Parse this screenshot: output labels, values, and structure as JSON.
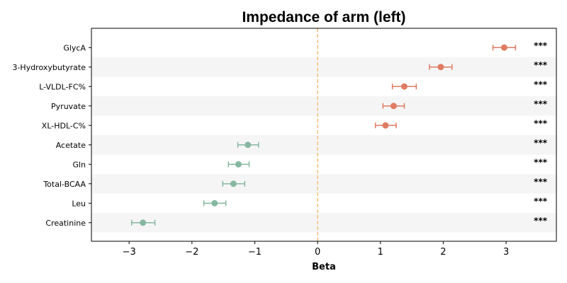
{
  "chart_data": {
    "type": "scatter",
    "title": "Impedance of arm (left)",
    "xlabel": "Beta",
    "ylabel": "",
    "xlim": [
      -3.6,
      3.8
    ],
    "xticks": [
      -3,
      -2,
      -1,
      0,
      1,
      2,
      3
    ],
    "xtick_labels": [
      "−3",
      "−2",
      "−1",
      "0",
      "1",
      "2",
      "3"
    ],
    "reference_line": {
      "x": 0,
      "style": "dashed",
      "color": "#f5c07a"
    },
    "colors": {
      "positive": "#e07b62",
      "negative": "#86b8a0",
      "stripe": "#f5f5f5"
    },
    "points": [
      {
        "label": "GlycA",
        "beta": 2.97,
        "ci_low": 2.79,
        "ci_high": 3.15,
        "significance": "***"
      },
      {
        "label": "3-Hydroxybutyrate",
        "beta": 1.96,
        "ci_low": 1.78,
        "ci_high": 2.14,
        "significance": "***"
      },
      {
        "label": "L-VLDL-FC%",
        "beta": 1.38,
        "ci_low": 1.19,
        "ci_high": 1.57,
        "significance": "***"
      },
      {
        "label": "Pyruvate",
        "beta": 1.21,
        "ci_low": 1.04,
        "ci_high": 1.38,
        "significance": "***"
      },
      {
        "label": "XL-HDL-C%",
        "beta": 1.08,
        "ci_low": 0.92,
        "ci_high": 1.25,
        "significance": "***"
      },
      {
        "label": "Acetate",
        "beta": -1.11,
        "ci_low": -1.27,
        "ci_high": -0.94,
        "significance": "***"
      },
      {
        "label": "Gln",
        "beta": -1.26,
        "ci_low": -1.42,
        "ci_high": -1.09,
        "significance": "***"
      },
      {
        "label": "Total-BCAA",
        "beta": -1.34,
        "ci_low": -1.51,
        "ci_high": -1.16,
        "significance": "***"
      },
      {
        "label": "Leu",
        "beta": -1.64,
        "ci_low": -1.81,
        "ci_high": -1.46,
        "significance": "***"
      },
      {
        "label": "Creatinine",
        "beta": -2.78,
        "ci_low": -2.96,
        "ci_high": -2.59,
        "significance": "***"
      }
    ]
  }
}
